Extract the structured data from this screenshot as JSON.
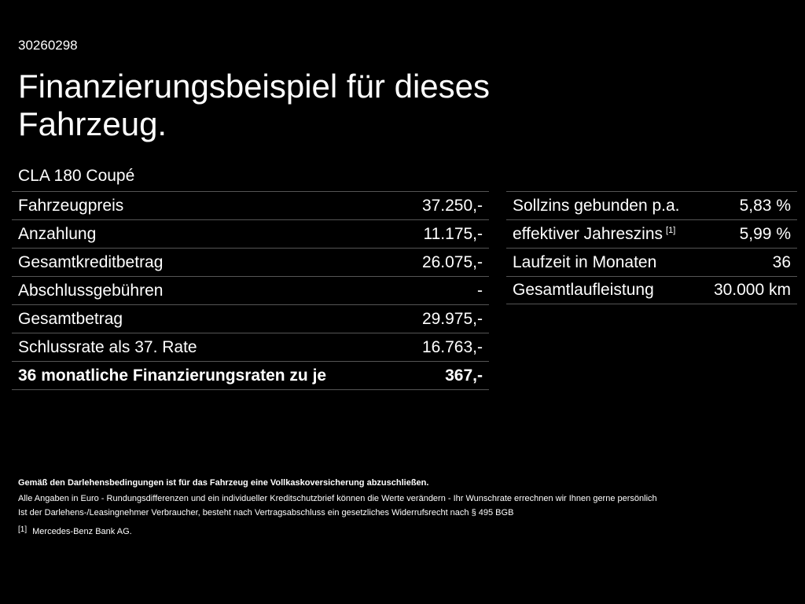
{
  "header": {
    "code": "30260298",
    "title": "Finanzierungsbeispiel für dieses Fahrzeug.",
    "model": "CLA 180 Coupé"
  },
  "left_table": [
    {
      "label": "Fahrzeugpreis",
      "value": "37.250,-"
    },
    {
      "label": "Anzahlung",
      "value": "11.175,-"
    },
    {
      "label": "Gesamtkreditbetrag",
      "value": "26.075,-"
    },
    {
      "label": "Abschlussgebühren",
      "value": "-"
    },
    {
      "label": "Gesamtbetrag",
      "value": "29.975,-"
    },
    {
      "label": "Schlussrate als 37. Rate",
      "value": "16.763,-"
    },
    {
      "label": "36 monatliche Finanzierungsraten zu je",
      "value": "367,-"
    }
  ],
  "right_table": [
    {
      "label": "Sollzins gebunden p.a.",
      "value": "5,83 %"
    },
    {
      "label": "effektiver Jahreszins",
      "footnote": "[1]",
      "value": "5,99 %"
    },
    {
      "label": "Laufzeit in Monaten",
      "value": "36"
    },
    {
      "label": "Gesamtlaufleistung",
      "value": "30.000 km"
    }
  ],
  "notes": {
    "insurance": "Gemäß den Darlehensbedingungen ist für das Fahrzeug eine Vollkaskoversicherung abzuschließen.",
    "line1": "Alle Angaben in Euro - Rundungsdifferenzen und ein individueller Kreditschutzbrief können die Werte verändern - Ihr Wunschrate errechnen wir Ihnen gerne persönlich",
    "line2": "Ist der Darlehens-/Leasingnehmer Verbraucher, besteht nach Vertragsabschluss ein gesetzliches Widerrufsrecht nach § 495 BGB",
    "footnote_mark": "[1]",
    "footnote_text": "Mercedes-Benz Bank AG."
  }
}
